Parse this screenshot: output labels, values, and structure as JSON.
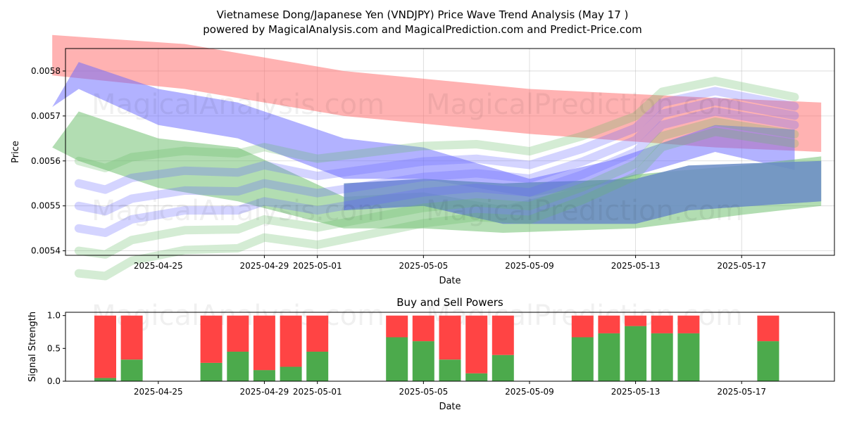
{
  "title": "Vietnamese Dong/Japanese Yen (VNDJPY) Price Wave Trend Analysis (May 17 )",
  "subtitle": "powered by MagicalAnalysis.com and MagicalPrediction.com and Predict-Price.com",
  "watermarks": [
    "MagicalAnalysis.com",
    "MagicalPrediction.com"
  ],
  "chart_data": [
    {
      "type": "area",
      "xlabel": "Date",
      "ylabel": "Price",
      "xlim": [
        "2025-04-21T12:00",
        "2025-05-20T12:00"
      ],
      "ylim": [
        0.00539,
        0.00585
      ],
      "x_ticks": [
        "2025-04-25",
        "2025-04-29",
        "2025-05-01",
        "2025-05-05",
        "2025-05-09",
        "2025-05-13",
        "2025-05-17"
      ],
      "y_ticks": [
        "0.0054",
        "0.0055",
        "0.0056",
        "0.0057",
        "0.0058"
      ],
      "grid": true,
      "colors": {
        "red": "#ff6666",
        "blue": "#6666ff",
        "green": "#66bb66",
        "steel": "#6a8cc6"
      },
      "bands": [
        {
          "color": "red",
          "opacity": 0.5,
          "dates": [
            "2025-04-21",
            "2025-04-26",
            "2025-05-02",
            "2025-05-09",
            "2025-05-16",
            "2025-05-20"
          ],
          "lower": [
            0.00579,
            0.00576,
            0.0057,
            0.00566,
            0.00563,
            0.00562
          ],
          "upper": [
            0.00588,
            0.00586,
            0.0058,
            0.00576,
            0.00574,
            0.00573
          ]
        },
        {
          "color": "blue",
          "opacity": 0.5,
          "dates": [
            "2025-04-21",
            "2025-04-22",
            "2025-04-25",
            "2025-04-28",
            "2025-05-02",
            "2025-05-05",
            "2025-05-09",
            "2025-05-12",
            "2025-05-16",
            "2025-05-19"
          ],
          "lower": [
            0.00572,
            0.00576,
            0.00568,
            0.00565,
            0.00556,
            0.00556,
            0.00552,
            0.00555,
            0.00562,
            0.00558
          ],
          "upper": [
            0.00572,
            0.00582,
            0.00576,
            0.00573,
            0.00565,
            0.00563,
            0.00556,
            0.0056,
            0.00568,
            0.00567
          ]
        },
        {
          "color": "green",
          "opacity": 0.5,
          "dates": [
            "2025-04-21",
            "2025-04-22",
            "2025-04-25",
            "2025-04-28",
            "2025-05-02",
            "2025-05-05",
            "2025-05-08",
            "2025-05-13",
            "2025-05-17",
            "2025-05-20"
          ],
          "lower": [
            0.00563,
            0.0056,
            0.00554,
            0.00551,
            0.00545,
            0.00545,
            0.00544,
            0.00545,
            0.00548,
            0.0055
          ],
          "upper": [
            0.00563,
            0.00571,
            0.00565,
            0.00563,
            0.00552,
            0.00553,
            0.0055,
            0.00557,
            0.00559,
            0.00561
          ]
        },
        {
          "color": "steel",
          "opacity": 0.85,
          "dates": [
            "2025-05-02",
            "2025-05-05",
            "2025-05-08",
            "2025-05-13",
            "2025-05-15",
            "2025-05-20"
          ],
          "lower": [
            0.00549,
            0.0055,
            0.00546,
            0.00546,
            0.00549,
            0.00551
          ],
          "upper": [
            0.00555,
            0.00556,
            0.00555,
            0.00556,
            0.00559,
            0.0056
          ]
        }
      ],
      "wave_bundle": {
        "center_dates": [
          "2025-04-22",
          "2025-04-23",
          "2025-04-24",
          "2025-04-26",
          "2025-04-28",
          "2025-04-29",
          "2025-05-01",
          "2025-05-03",
          "2025-05-05",
          "2025-05-07",
          "2025-05-09",
          "2025-05-11",
          "2025-05-13",
          "2025-05-14",
          "2025-05-16",
          "2025-05-19"
        ],
        "center": [
          0.00545,
          0.00544,
          0.00547,
          0.00549,
          0.00549,
          0.00551,
          0.00549,
          0.00551,
          0.00553,
          0.00554,
          0.00553,
          0.00557,
          0.00562,
          0.00568,
          0.00571,
          0.00568
        ],
        "offsets": [
          0.0,
          -0.0001,
          0.0001,
          -5e-05,
          5e-05,
          0.00015
        ],
        "colors": [
          "blue",
          "green",
          "blue",
          "green",
          "blue",
          "green"
        ]
      }
    },
    {
      "type": "bar",
      "title": "Buy and Sell Powers",
      "xlabel": "Date",
      "ylabel": "Signal Strength",
      "ylim": [
        0,
        1.05
      ],
      "y_ticks": [
        "0.0",
        "0.5",
        "1.0"
      ],
      "series_colors": {
        "buy": "#4caa4c",
        "sell": "#ff4444"
      },
      "dates": [
        "2025-04-23",
        "2025-04-24",
        "2025-04-27",
        "2025-04-28",
        "2025-04-29",
        "2025-04-30",
        "2025-05-01",
        "2025-05-04",
        "2025-05-05",
        "2025-05-06",
        "2025-05-07",
        "2025-05-08",
        "2025-05-11",
        "2025-05-12",
        "2025-05-13",
        "2025-05-14",
        "2025-05-15",
        "2025-05-18"
      ],
      "buy": [
        0.05,
        0.33,
        0.28,
        0.45,
        0.17,
        0.22,
        0.45,
        0.67,
        0.61,
        0.33,
        0.12,
        0.4,
        0.67,
        0.73,
        0.84,
        0.73,
        0.73,
        0.61
      ],
      "sell": [
        0.95,
        0.67,
        0.72,
        0.55,
        0.83,
        0.78,
        0.55,
        0.33,
        0.39,
        0.67,
        0.88,
        0.6,
        0.33,
        0.27,
        0.16,
        0.27,
        0.27,
        0.39
      ]
    }
  ]
}
